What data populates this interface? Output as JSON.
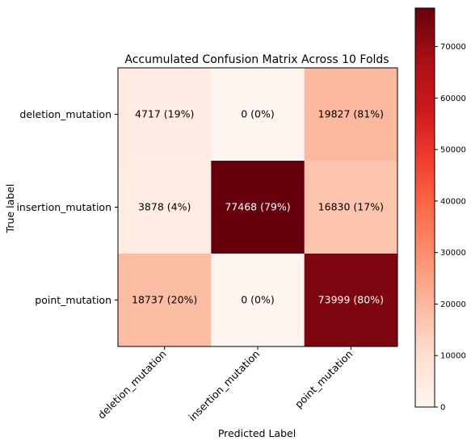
{
  "chart_data": {
    "type": "heatmap",
    "title": "Accumulated Confusion Matrix Across 10 Folds",
    "xlabel": "Predicted Label",
    "ylabel": "True label",
    "row_labels": [
      "deletion_mutation",
      "insertion_mutation",
      "point_mutation"
    ],
    "col_labels": [
      "deletion_mutation",
      "insertion_mutation",
      "point_mutation"
    ],
    "values": [
      [
        4717,
        0,
        19827
      ],
      [
        3878,
        77468,
        16830
      ],
      [
        18737,
        0,
        73999
      ]
    ],
    "cell_labels": [
      [
        "4717 (19%)",
        "0 (0%)",
        "19827 (81%)"
      ],
      [
        "3878 (4%)",
        "77468 (79%)",
        "16830 (17%)"
      ],
      [
        "18737 (20%)",
        "0 (0%)",
        "73999 (80%)"
      ]
    ],
    "colormap": "Reds",
    "colorbar": {
      "min": 0,
      "max": 77468,
      "ticks": [
        0,
        10000,
        20000,
        30000,
        40000,
        50000,
        60000,
        70000
      ]
    }
  }
}
